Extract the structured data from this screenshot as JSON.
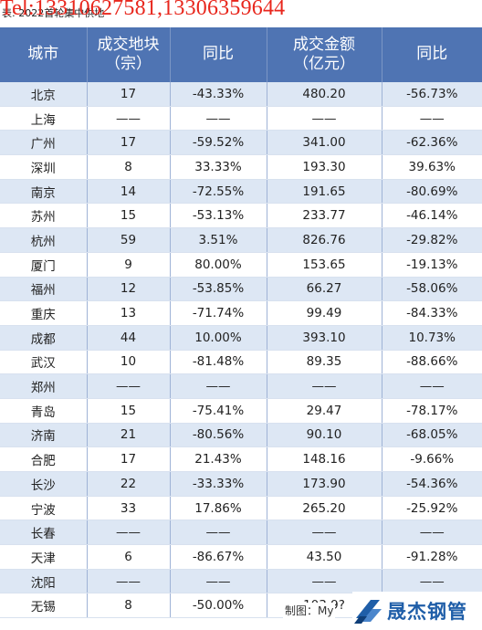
{
  "caption": "表: 2022首轮集中供地",
  "watermark_tel": "Tel:13310627581,13306359644",
  "headers": [
    "城市",
    "成交地块\n（宗）",
    "同比",
    "成交金额\n（亿元）",
    "同比"
  ],
  "rows": [
    {
      "city": "北京",
      "count": "17",
      "count_yoy": "-43.33%",
      "amount": "480.20",
      "amount_yoy": "-56.73%"
    },
    {
      "city": "上海",
      "count": "——",
      "count_yoy": "——",
      "amount": "——",
      "amount_yoy": "——"
    },
    {
      "city": "广州",
      "count": "17",
      "count_yoy": "-59.52%",
      "amount": "341.00",
      "amount_yoy": "-62.36%"
    },
    {
      "city": "深圳",
      "count": "8",
      "count_yoy": "33.33%",
      "amount": "193.30",
      "amount_yoy": "39.63%"
    },
    {
      "city": "南京",
      "count": "14",
      "count_yoy": "-72.55%",
      "amount": "191.65",
      "amount_yoy": "-80.69%"
    },
    {
      "city": "苏州",
      "count": "15",
      "count_yoy": "-53.13%",
      "amount": "233.77",
      "amount_yoy": "-46.14%"
    },
    {
      "city": "杭州",
      "count": "59",
      "count_yoy": "3.51%",
      "amount": "826.76",
      "amount_yoy": "-29.82%"
    },
    {
      "city": "厦门",
      "count": "9",
      "count_yoy": "80.00%",
      "amount": "153.65",
      "amount_yoy": "-19.13%"
    },
    {
      "city": "福州",
      "count": "12",
      "count_yoy": "-53.85%",
      "amount": "66.27",
      "amount_yoy": "-58.06%"
    },
    {
      "city": "重庆",
      "count": "13",
      "count_yoy": "-71.74%",
      "amount": "99.49",
      "amount_yoy": "-84.33%"
    },
    {
      "city": "成都",
      "count": "44",
      "count_yoy": "10.00%",
      "amount": "393.10",
      "amount_yoy": "10.73%"
    },
    {
      "city": "武汉",
      "count": "10",
      "count_yoy": "-81.48%",
      "amount": "89.35",
      "amount_yoy": "-88.66%"
    },
    {
      "city": "郑州",
      "count": "——",
      "count_yoy": "——",
      "amount": "——",
      "amount_yoy": "——"
    },
    {
      "city": "青岛",
      "count": "15",
      "count_yoy": "-75.41%",
      "amount": "29.47",
      "amount_yoy": "-78.17%"
    },
    {
      "city": "济南",
      "count": "21",
      "count_yoy": "-80.56%",
      "amount": "90.10",
      "amount_yoy": "-68.05%"
    },
    {
      "city": "合肥",
      "count": "17",
      "count_yoy": "21.43%",
      "amount": "148.16",
      "amount_yoy": "-9.66%"
    },
    {
      "city": "长沙",
      "count": "22",
      "count_yoy": "-33.33%",
      "amount": "173.90",
      "amount_yoy": "-54.36%"
    },
    {
      "city": "宁波",
      "count": "33",
      "count_yoy": "17.86%",
      "amount": "265.20",
      "amount_yoy": "-25.92%"
    },
    {
      "city": "长春",
      "count": "——",
      "count_yoy": "——",
      "amount": "——",
      "amount_yoy": "——"
    },
    {
      "city": "天津",
      "count": "6",
      "count_yoy": "-86.67%",
      "amount": "43.50",
      "amount_yoy": "-91.28%"
    },
    {
      "city": "沈阳",
      "count": "——",
      "count_yoy": "——",
      "amount": "——",
      "amount_yoy": "——"
    },
    {
      "city": "无锡",
      "count": "8",
      "count_yoy": "-50.00%",
      "amount": "103.9?",
      "amount_yoy": ""
    }
  ],
  "footer": "制图：My",
  "logo_text": "晟杰钢管",
  "colors": {
    "header_bg": "#4f74b3",
    "row_alt_bg": "#dde7f4",
    "negative": "#3a8a1f",
    "positive": "#c0142a",
    "watermark": "#e8261c",
    "logo": "#1f5ea8"
  }
}
